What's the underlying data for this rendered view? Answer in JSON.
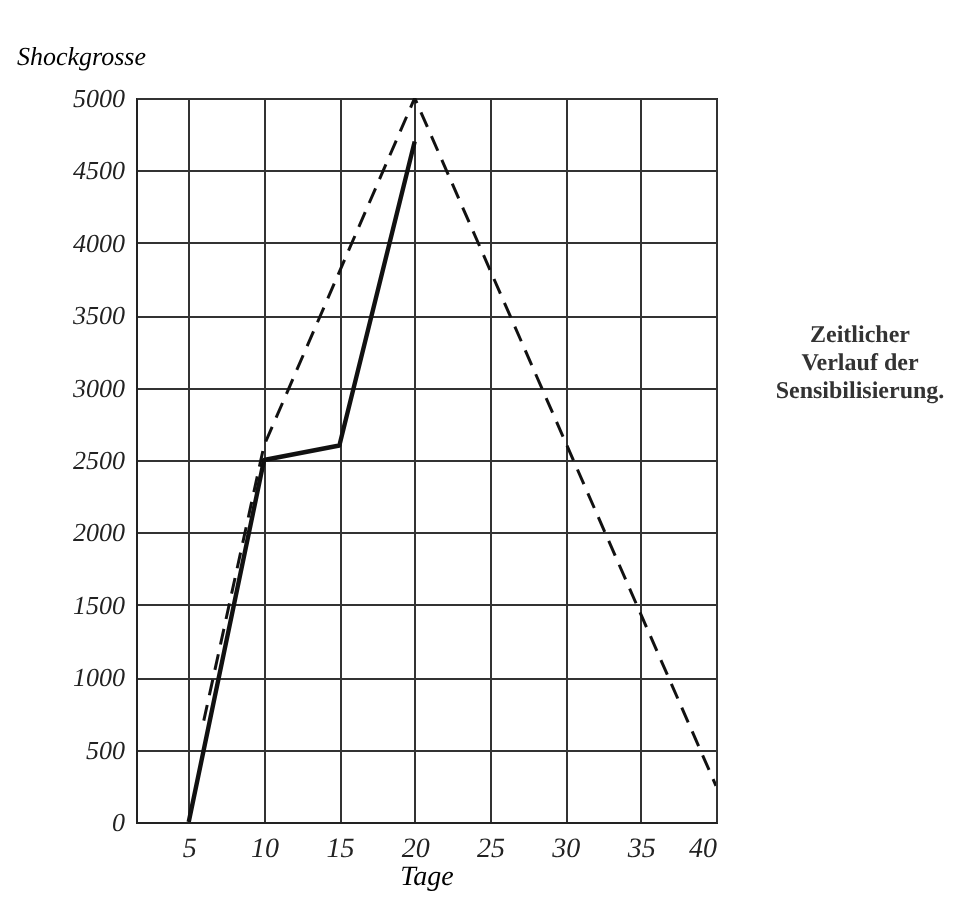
{
  "chart_data": {
    "type": "line",
    "xlabel": "Tage",
    "ylabel": "Shockgrosse",
    "x": [
      5,
      10,
      15,
      20
    ],
    "series": [
      {
        "color": "#111111",
        "line_style": "solid",
        "values": [
          0,
          2500,
          2600,
          4700
        ]
      },
      {
        "color": "#111111",
        "line_style": "dashed",
        "x": [
          6,
          10,
          20,
          40
        ],
        "values": [
          700,
          2600,
          5000,
          250
        ]
      }
    ],
    "xlim": [
      1.5,
      40
    ],
    "xticks": [
      5,
      10,
      15,
      20,
      25,
      30,
      35,
      40
    ],
    "ylim": [
      0,
      5000
    ],
    "yticks": [
      0,
      500,
      1000,
      1500,
      2000,
      2500,
      3000,
      3500,
      4000,
      4500,
      5000
    ],
    "grid": true,
    "annotations": [
      "Zeitlicher Verlauf der Sensibilisierung."
    ]
  }
}
